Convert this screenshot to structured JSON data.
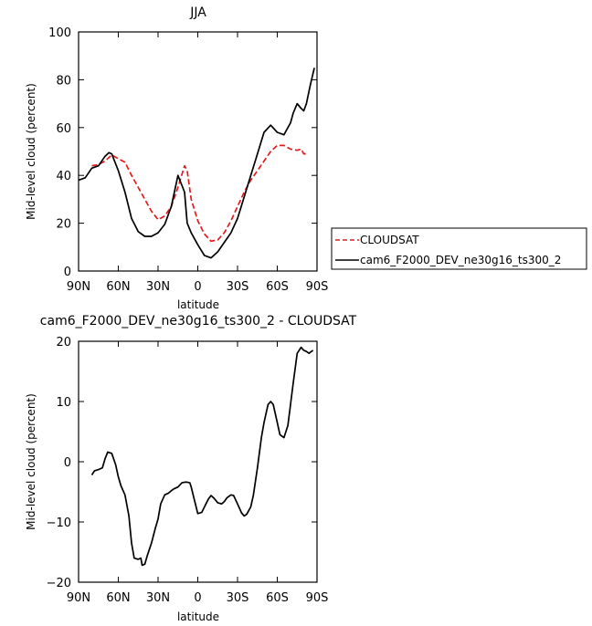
{
  "chart_data": [
    {
      "type": "line",
      "title": "JJA",
      "xlabel": "latitude",
      "ylabel": "Mid-level cloud (percent)",
      "xlim": [
        90,
        -90
      ],
      "ylim": [
        0,
        100
      ],
      "x_ticks": [
        90,
        60,
        30,
        0,
        -30,
        -60,
        -90
      ],
      "x_tick_labels": [
        "90N",
        "60N",
        "30N",
        "0",
        "30S",
        "60S",
        "90S"
      ],
      "y_ticks": [
        0,
        20,
        40,
        60,
        80,
        100
      ],
      "y_tick_labels": [
        "0",
        "20",
        "40",
        "60",
        "80",
        "100"
      ],
      "legend_position": "right-bottom",
      "series": [
        {
          "name": "CLOUDSAT",
          "color": "#e41a1c",
          "dash": "dashed",
          "x": [
            80,
            75,
            70,
            65,
            60,
            55,
            50,
            45,
            40,
            35,
            30,
            25,
            20,
            15,
            10,
            8,
            5,
            0,
            -5,
            -10,
            -15,
            -20,
            -25,
            -30,
            -35,
            -40,
            -45,
            -50,
            -55,
            -60,
            -65,
            -70,
            -75,
            -78,
            -80,
            -82
          ],
          "y": [
            44,
            44.5,
            46,
            48.5,
            47,
            45.5,
            40,
            35,
            30,
            25,
            21.5,
            23,
            27,
            35,
            44,
            42,
            30,
            21,
            15.5,
            12.5,
            13,
            16,
            21,
            27,
            33,
            38,
            42,
            46,
            50,
            52.5,
            52.5,
            51,
            50.5,
            51,
            49,
            49
          ]
        },
        {
          "name": "cam6_F2000_DEV_ne30g16_ts300_2",
          "color": "#000000",
          "dash": "solid",
          "x": [
            90,
            85,
            80,
            75,
            70,
            67,
            65,
            60,
            55,
            50,
            45,
            40,
            35,
            30,
            25,
            20,
            15,
            10,
            8,
            5,
            0,
            -5,
            -10,
            -15,
            -20,
            -25,
            -30,
            -35,
            -40,
            -45,
            -50,
            -55,
            -60,
            -65,
            -70,
            -72,
            -75,
            -78,
            -80,
            -82,
            -85,
            -88
          ],
          "y": [
            38,
            39,
            43,
            44,
            48,
            49.5,
            49,
            42,
            33,
            22,
            16.5,
            14.5,
            14.5,
            16,
            19.5,
            27,
            40,
            33,
            20,
            16,
            11,
            6.5,
            5.5,
            8,
            12,
            16,
            22,
            31,
            40,
            49,
            58,
            61,
            58,
            57,
            62,
            66,
            70,
            68,
            67,
            70,
            78,
            85
          ]
        }
      ]
    },
    {
      "type": "line",
      "title": "cam6_F2000_DEV_ne30g16_ts300_2 - CLOUDSAT",
      "xlabel": "latitude",
      "ylabel": "Mid-level cloud (percent)",
      "xlim": [
        90,
        -90
      ],
      "ylim": [
        -20,
        20
      ],
      "x_ticks": [
        90,
        60,
        30,
        0,
        -30,
        -60,
        -90
      ],
      "x_tick_labels": [
        "90N",
        "60N",
        "30N",
        "0",
        "30S",
        "60S",
        "90S"
      ],
      "y_ticks": [
        -20,
        -10,
        0,
        10,
        20
      ],
      "y_tick_labels": [
        "−20",
        "−10",
        "0",
        "10",
        "20"
      ],
      "series": [
        {
          "name": "",
          "color": "#000000",
          "dash": "solid",
          "x": [
            80,
            78,
            75,
            72,
            70,
            68,
            65,
            62,
            60,
            58,
            55,
            52,
            50,
            48,
            45,
            43,
            42,
            40,
            38,
            35,
            32,
            30,
            28,
            25,
            22,
            20,
            18,
            15,
            12,
            10,
            8,
            6,
            5,
            3,
            0,
            -3,
            -5,
            -8,
            -10,
            -12,
            -15,
            -18,
            -20,
            -22,
            -25,
            -27,
            -30,
            -33,
            -35,
            -37,
            -40,
            -42,
            -45,
            -48,
            -50,
            -53,
            -55,
            -57,
            -60,
            -62,
            -65,
            -68,
            -70,
            -72,
            -75,
            -78,
            -80,
            -82,
            -84,
            -85,
            -87
          ],
          "y": [
            -2.2,
            -1.5,
            -1.3,
            -1,
            0.5,
            1.6,
            1.4,
            -0.5,
            -2.5,
            -4,
            -5.5,
            -9,
            -13.5,
            -16,
            -16.2,
            -16,
            -17.2,
            -17,
            -15.5,
            -13.5,
            -11,
            -9.5,
            -7,
            -5.5,
            -5.2,
            -4.8,
            -4.5,
            -4.2,
            -3.5,
            -3.4,
            -3.4,
            -3.5,
            -4.2,
            -6,
            -8.6,
            -8.4,
            -7.5,
            -6.2,
            -5.6,
            -6,
            -6.8,
            -7,
            -6.6,
            -6,
            -5.5,
            -5.6,
            -7,
            -8.5,
            -9,
            -8.7,
            -7.5,
            -5.5,
            -1,
            4,
            6.5,
            9.5,
            10,
            9.5,
            6.5,
            4.5,
            4,
            6,
            9.5,
            13,
            18,
            19,
            18.5,
            18.3,
            18,
            18.2,
            18.5
          ]
        }
      ]
    }
  ]
}
